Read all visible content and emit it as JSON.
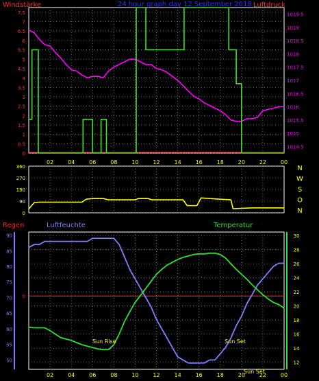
{
  "chart_data": [
    {
      "type": "line",
      "title": "24 hour graph day 12 September 2018",
      "left_label": "Windstärke",
      "right_label": "Luftdruck",
      "x_ticks": [
        "02",
        "04",
        "06",
        "08",
        "10",
        "12",
        "14",
        "16",
        "18",
        "20",
        "22",
        "00"
      ],
      "left_ticks": [
        "0",
        "0.5",
        "1",
        "1.5",
        "2",
        "2.5",
        "3",
        "3.5",
        "4",
        "4.5",
        "5",
        "5.5",
        "6",
        "6.5",
        "7",
        "7.5"
      ],
      "right_ticks": [
        "1014.5",
        "1015",
        "1015.5",
        "1016",
        "1016.5",
        "1017",
        "1017.5",
        "1018",
        "1018.5",
        "1019",
        "1019.5"
      ],
      "ylim_left": [
        0,
        7.75
      ],
      "ylim_right": [
        1014.25,
        1019.75
      ],
      "grid": true,
      "colors": {
        "pressure": "#ff00ff",
        "wind": "#44e030",
        "zero": "#ff2020",
        "axis": "#ff3030",
        "title": "#3030ff",
        "ticks": "#ffff00"
      },
      "series": [
        {
          "name": "Luftdruck",
          "axis": "right",
          "x": [
            0.0,
            0.5,
            1.0,
            1.5,
            2.0,
            2.5,
            3.0,
            3.5,
            4.0,
            4.5,
            5.0,
            5.5,
            6.0,
            6.5,
            7.0,
            7.5,
            8.0,
            8.5,
            9.0,
            9.5,
            10.0,
            10.5,
            11.0,
            11.5,
            12.0,
            12.5,
            13.0,
            13.5,
            14.0,
            14.5,
            15.0,
            15.5,
            16.0,
            16.5,
            17.0,
            17.5,
            18.0,
            18.5,
            19.0,
            19.5,
            20.0,
            20.5,
            21.0,
            21.5,
            22.0,
            22.5,
            23.0,
            23.5,
            24.0
          ],
          "values": [
            1018.9,
            1018.8,
            1018.55,
            1018.35,
            1018.3,
            1018.05,
            1017.85,
            1017.6,
            1017.4,
            1017.35,
            1017.2,
            1017.1,
            1017.15,
            1017.15,
            1017.1,
            1017.35,
            1017.5,
            1017.6,
            1017.7,
            1017.8,
            1017.8,
            1017.7,
            1017.6,
            1017.6,
            1017.45,
            1017.4,
            1017.3,
            1017.15,
            1017.0,
            1016.8,
            1016.6,
            1016.4,
            1016.3,
            1016.15,
            1016.05,
            1015.95,
            1015.85,
            1015.7,
            1015.5,
            1015.45,
            1015.45,
            1015.55,
            1015.55,
            1015.6,
            1015.85,
            1015.9,
            1015.95,
            1016.0,
            1016.0
          ]
        },
        {
          "name": "Windstärke",
          "axis": "left",
          "x": [
            0.0,
            0.3,
            0.3,
            0.9,
            0.9,
            1.4,
            1.4,
            5.1,
            5.1,
            6.0,
            6.0,
            6.8,
            6.8,
            7.3,
            7.3,
            10.1,
            10.1,
            11.0,
            11.0,
            14.6,
            14.6,
            18.8,
            18.8,
            19.5,
            19.5,
            20.0,
            20.0,
            24.0
          ],
          "values": [
            1.8,
            1.8,
            5.5,
            5.5,
            0.0,
            0.0,
            0.0,
            0.0,
            1.8,
            1.8,
            0.0,
            0.0,
            1.8,
            1.8,
            0.0,
            0.0,
            8.0,
            8.0,
            5.5,
            5.5,
            8.0,
            8.0,
            5.5,
            5.5,
            3.7,
            3.7,
            0.0,
            0.0
          ]
        }
      ]
    },
    {
      "type": "line",
      "left_ticks": [
        "0",
        "90",
        "180",
        "270",
        "360"
      ],
      "right_ticks": [
        "N",
        "W",
        "S",
        "O",
        "N"
      ],
      "ylim": [
        0,
        360
      ],
      "x_ticks": [],
      "grid": true,
      "colors": {
        "series": "#ffff00"
      },
      "series": [
        {
          "name": "Windrichtung",
          "x": [
            0.0,
            0.2,
            0.5,
            1.0,
            5.0,
            5.4,
            6.0,
            7.0,
            7.5,
            10.0,
            10.3,
            11.2,
            11.6,
            14.5,
            14.9,
            15.8,
            16.2,
            18.0,
            19.0,
            19.2,
            21.0,
            24.0
          ],
          "values": [
            28,
            50,
            78,
            82,
            82,
            105,
            110,
            110,
            100,
            100,
            110,
            110,
            100,
            100,
            55,
            55,
            115,
            105,
            100,
            32,
            38,
            38
          ]
        }
      ]
    },
    {
      "type": "line",
      "left_title": "Regen",
      "middle_title": "Luftfeuchte",
      "right_title": "Temperatur",
      "left_ticks": [
        "50",
        "55",
        "60",
        "65",
        "70",
        "75",
        "80",
        "85",
        "90"
      ],
      "right_ticks": [
        "12",
        "14",
        "16",
        "18",
        "20",
        "22",
        "24",
        "26",
        "28",
        "30"
      ],
      "rain_tick": "0",
      "x_ticks": [
        "02",
        "04",
        "06",
        "08",
        "10",
        "12",
        "14",
        "16",
        "18",
        "20",
        "22",
        "00"
      ],
      "ylim_left": [
        47,
        91
      ],
      "ylim_right": [
        11,
        30.5
      ],
      "rain_value": 0,
      "annotations": [
        {
          "text": "Sun Rise",
          "x": 7.1
        },
        {
          "text": "Sun Set",
          "x": 19.4
        },
        {
          "text": "Sun Set",
          "x": 21.2
        }
      ],
      "grid": true,
      "colors": {
        "humidity": "#8080ff",
        "temperature": "#30e030",
        "rain": "#ff2020",
        "title_rain": "#ff2020",
        "title_humidity": "#8080ff",
        "title_temperature": "#30e030",
        "ticks": "#ffff00"
      },
      "series": [
        {
          "name": "Luftfeuchte",
          "axis": "left",
          "x": [
            0.0,
            0.5,
            1.0,
            1.5,
            2.0,
            2.5,
            3.0,
            3.5,
            4.0,
            4.5,
            5.0,
            5.5,
            6.0,
            6.5,
            7.0,
            7.5,
            8.0,
            8.5,
            9.0,
            9.5,
            10.0,
            10.5,
            11.0,
            11.5,
            12.0,
            12.5,
            13.0,
            13.5,
            14.0,
            14.5,
            15.0,
            15.5,
            16.0,
            16.5,
            17.0,
            17.5,
            18.0,
            18.5,
            19.0,
            19.5,
            20.0,
            20.5,
            21.0,
            21.5,
            22.0,
            22.5,
            23.0,
            23.5,
            24.0
          ],
          "values": [
            86,
            87,
            87,
            88,
            88,
            88,
            88,
            88,
            88,
            88,
            88,
            88,
            89,
            89,
            89,
            89,
            89,
            87,
            83,
            79,
            76,
            73,
            70,
            67,
            63,
            60,
            57,
            54,
            51,
            50,
            49,
            49,
            49,
            49,
            50,
            50,
            52,
            54,
            57,
            61,
            64,
            68,
            71,
            74,
            76,
            78,
            80,
            81,
            81
          ]
        },
        {
          "name": "Temperatur",
          "axis": "right",
          "x": [
            0.0,
            0.5,
            1.0,
            1.5,
            2.0,
            2.5,
            3.0,
            3.5,
            4.0,
            4.5,
            5.0,
            5.5,
            6.0,
            6.5,
            7.0,
            7.5,
            8.0,
            8.5,
            9.0,
            9.5,
            10.0,
            10.5,
            11.0,
            11.5,
            12.0,
            12.5,
            13.0,
            13.5,
            14.0,
            14.5,
            15.0,
            15.5,
            16.0,
            16.5,
            17.0,
            17.5,
            18.0,
            18.5,
            19.0,
            19.5,
            20.0,
            20.5,
            21.0,
            21.5,
            22.0,
            22.5,
            23.0,
            23.5,
            24.0
          ],
          "values": [
            17.0,
            16.9,
            16.9,
            16.9,
            16.5,
            16.0,
            15.5,
            15.3,
            15.1,
            14.8,
            14.5,
            14.3,
            14.1,
            13.9,
            13.8,
            13.8,
            14.5,
            16.0,
            17.8,
            19.2,
            20.5,
            21.5,
            22.5,
            23.5,
            24.5,
            25.2,
            25.8,
            26.2,
            26.6,
            26.9,
            27.1,
            27.3,
            27.4,
            27.4,
            27.5,
            27.5,
            27.3,
            26.8,
            26.0,
            25.2,
            24.5,
            23.8,
            23.0,
            22.3,
            21.6,
            21.0,
            20.5,
            20.2,
            19.7
          ]
        }
      ]
    }
  ]
}
